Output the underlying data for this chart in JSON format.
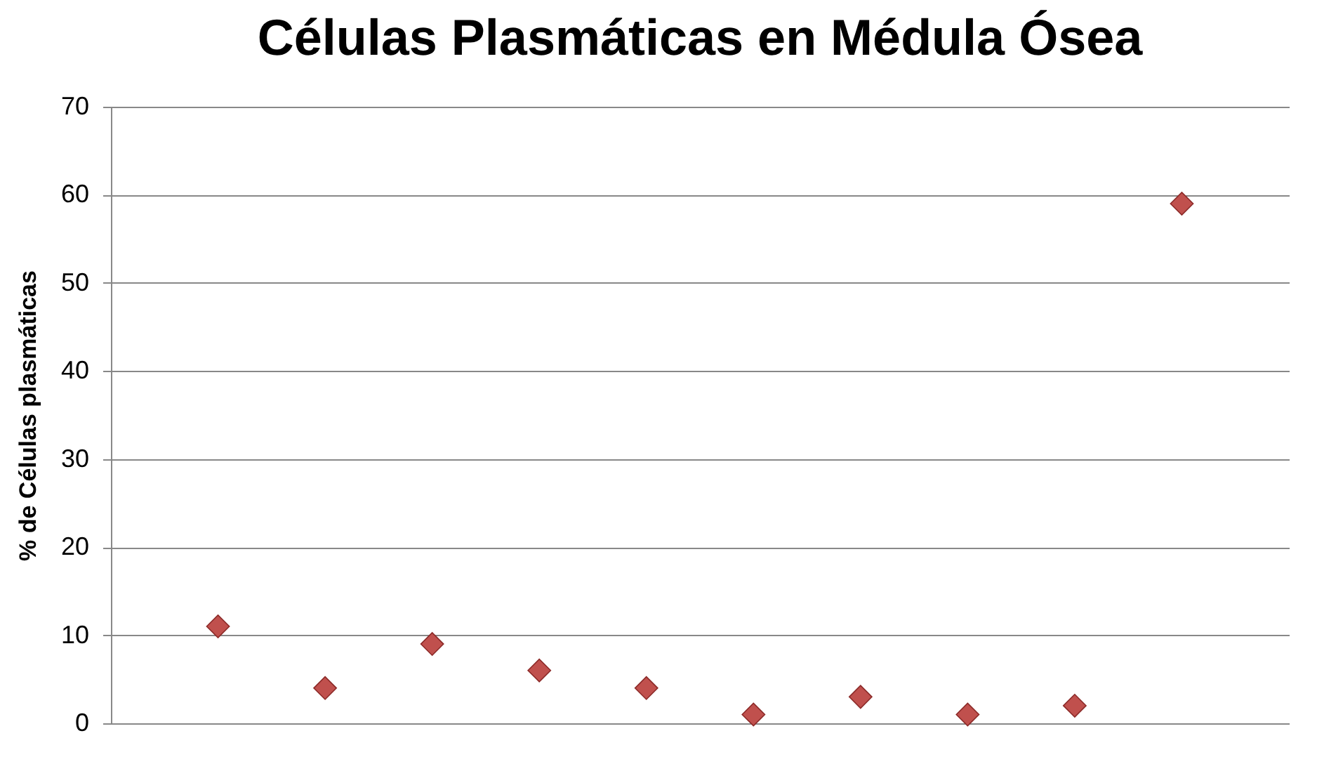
{
  "chart_data": {
    "type": "scatter",
    "title": "Células Plasmáticas en Médula Ósea",
    "ylabel": "% de Células plasmáticas",
    "categories": [
      null,
      null,
      null,
      null,
      null,
      null,
      null,
      null,
      null,
      null
    ],
    "values": [
      11,
      4,
      9,
      6,
      4,
      1,
      3,
      1,
      2,
      59
    ],
    "color": "#c0504d",
    "marker": "diamond",
    "ylim": [
      0,
      70
    ],
    "yticks": [
      0,
      10,
      20,
      30,
      40,
      50,
      60,
      70
    ],
    "grid": "y",
    "tick_labels": "y"
  }
}
